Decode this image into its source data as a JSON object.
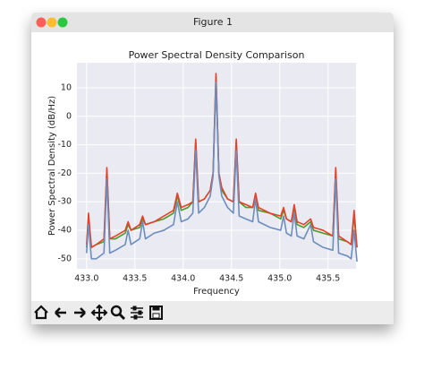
{
  "window": {
    "title": "Figure 1"
  },
  "chart_data": {
    "type": "line",
    "title": "Power Spectral Density Comparison",
    "x_label": "Frequency",
    "y_label": "Power Spectral Density (dB/Hz)",
    "x": [
      433.0,
      433.02,
      433.05,
      433.1,
      433.18,
      433.21,
      433.24,
      433.3,
      433.4,
      433.43,
      433.46,
      433.55,
      433.58,
      433.61,
      433.7,
      433.8,
      433.9,
      433.94,
      433.98,
      434.05,
      434.1,
      434.13,
      434.16,
      434.22,
      434.28,
      434.31,
      434.34,
      434.37,
      434.4,
      434.46,
      434.52,
      434.55,
      434.58,
      434.65,
      434.72,
      434.75,
      434.78,
      434.9,
      435.01,
      435.04,
      435.07,
      435.12,
      435.15,
      435.18,
      435.25,
      435.32,
      435.35,
      435.45,
      435.55,
      435.58,
      435.61,
      435.7,
      435.74,
      435.77,
      435.8
    ],
    "series": [
      {
        "color": "#4c9a2a",
        "values": [
          -46,
          -36,
          -46,
          -45,
          -44,
          -19,
          -43,
          -43,
          -41,
          -38,
          -40,
          -39,
          -36,
          -38,
          -37,
          -36,
          -34,
          -28,
          -33,
          -32,
          -30,
          -9,
          -30,
          -29,
          -26,
          -20,
          14,
          -20,
          -26,
          -29,
          -30,
          -9,
          -30,
          -32,
          -32,
          -28,
          -33,
          -34,
          -36,
          -33,
          -36,
          -37,
          -32,
          -38,
          -39,
          -37,
          -40,
          -41,
          -42,
          -19,
          -43,
          -44,
          -45,
          -35,
          -46
        ]
      },
      {
        "color": "#e8402a",
        "values": [
          -45,
          -34,
          -46,
          -45,
          -43,
          -18,
          -43,
          -42,
          -40,
          -37,
          -40,
          -38,
          -35,
          -38,
          -37,
          -35,
          -33,
          -27,
          -32,
          -31,
          -30,
          -8,
          -30,
          -29,
          -26,
          -20,
          15,
          -20,
          -25,
          -29,
          -30,
          -8,
          -30,
          -31,
          -32,
          -27,
          -32,
          -34,
          -35,
          -32,
          -36,
          -37,
          -31,
          -37,
          -38,
          -36,
          -39,
          -40,
          -42,
          -18,
          -42,
          -44,
          -45,
          -33,
          -46
        ]
      },
      {
        "color": "#6c8ebf",
        "values": [
          -48,
          -38,
          -50,
          -50,
          -48,
          -22,
          -48,
          -47,
          -45,
          -40,
          -45,
          -43,
          -37,
          -43,
          -41,
          -40,
          -38,
          -30,
          -37,
          -36,
          -34,
          -12,
          -34,
          -32,
          -28,
          -21,
          12,
          -21,
          -28,
          -32,
          -34,
          -12,
          -35,
          -36,
          -37,
          -29,
          -37,
          -39,
          -40,
          -35,
          -41,
          -42,
          -34,
          -42,
          -43,
          -38,
          -44,
          -46,
          -47,
          -22,
          -48,
          -49,
          -50,
          -40,
          -51
        ]
      }
    ],
    "xlim": [
      432.9,
      435.79
    ],
    "ylim": [
      -53.5,
      18.8
    ],
    "xticks": [
      {
        "value": 433,
        "label": "433.0"
      },
      {
        "value": 433.5,
        "label": "433.5"
      },
      {
        "value": 434,
        "label": "434.0"
      },
      {
        "value": 434.5,
        "label": "434.5"
      },
      {
        "value": 435,
        "label": "435.0"
      },
      {
        "value": 435.5,
        "label": "435.5"
      }
    ],
    "yticks": [
      -50,
      -40,
      -30,
      -20,
      -10,
      0,
      10
    ],
    "grid": true,
    "background": "#eaeaf2"
  }
}
